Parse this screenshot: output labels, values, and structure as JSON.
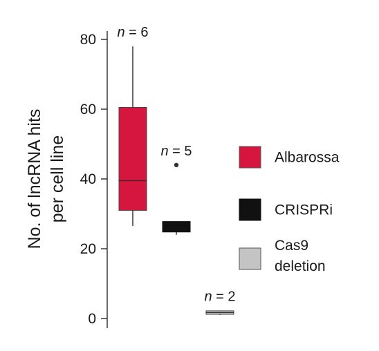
{
  "chart_data": {
    "type": "box",
    "ylabel_lines": [
      "No. of lncRNA hits",
      "per cell line"
    ],
    "ylim": [
      0,
      80
    ],
    "yticks": [
      0,
      20,
      40,
      60,
      80
    ],
    "grid": false,
    "legend_position": "right",
    "series": [
      {
        "name": "Albarossa",
        "color": "#d7163f",
        "n_label": "n = 6",
        "whisker_low": 26.5,
        "q1": 31,
        "median": 39.5,
        "q3": 60.5,
        "whisker_high": 78,
        "outliers": []
      },
      {
        "name": "CRISPRi",
        "color": "#111111",
        "n_label": "n = 5",
        "whisker_low": 24,
        "q1": 24.8,
        "median": 26.5,
        "q3": 27.8,
        "whisker_high": 27.8,
        "outliers": [
          44
        ]
      },
      {
        "name": "Cas9 deletion",
        "color": "#c4c4c4",
        "n_label": "n = 2",
        "whisker_low": 1,
        "q1": 1.2,
        "median": 1.7,
        "q3": 2.2,
        "whisker_high": 2.3,
        "outliers": []
      }
    ],
    "legend": [
      {
        "label_lines": [
          "Albarossa"
        ],
        "color": "#d7163f"
      },
      {
        "label_lines": [
          "CRISPRi"
        ],
        "color": "#111111"
      },
      {
        "label_lines": [
          "Cas9",
          "deletion"
        ],
        "color": "#c4c4c4"
      }
    ]
  }
}
